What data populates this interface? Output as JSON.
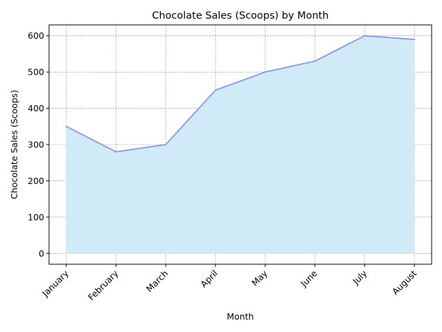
{
  "chart_data": {
    "type": "area",
    "title": "Chocolate Sales (Scoops) by Month",
    "xlabel": "Month",
    "ylabel": "Chocolate Sales (Scoops)",
    "categories": [
      "January",
      "February",
      "March",
      "April",
      "May",
      "June",
      "July",
      "August"
    ],
    "series": [
      {
        "values": [
          350,
          280,
          300,
          450,
          500,
          530,
          600,
          590
        ]
      }
    ],
    "ylim": [
      -30,
      630
    ],
    "yticks": [
      0,
      100,
      200,
      300,
      400,
      500,
      600
    ],
    "grid": true,
    "legend": "none",
    "colors": {
      "fill": "#d0eaf7",
      "line": "#9999e0",
      "grid": "#888888"
    }
  }
}
